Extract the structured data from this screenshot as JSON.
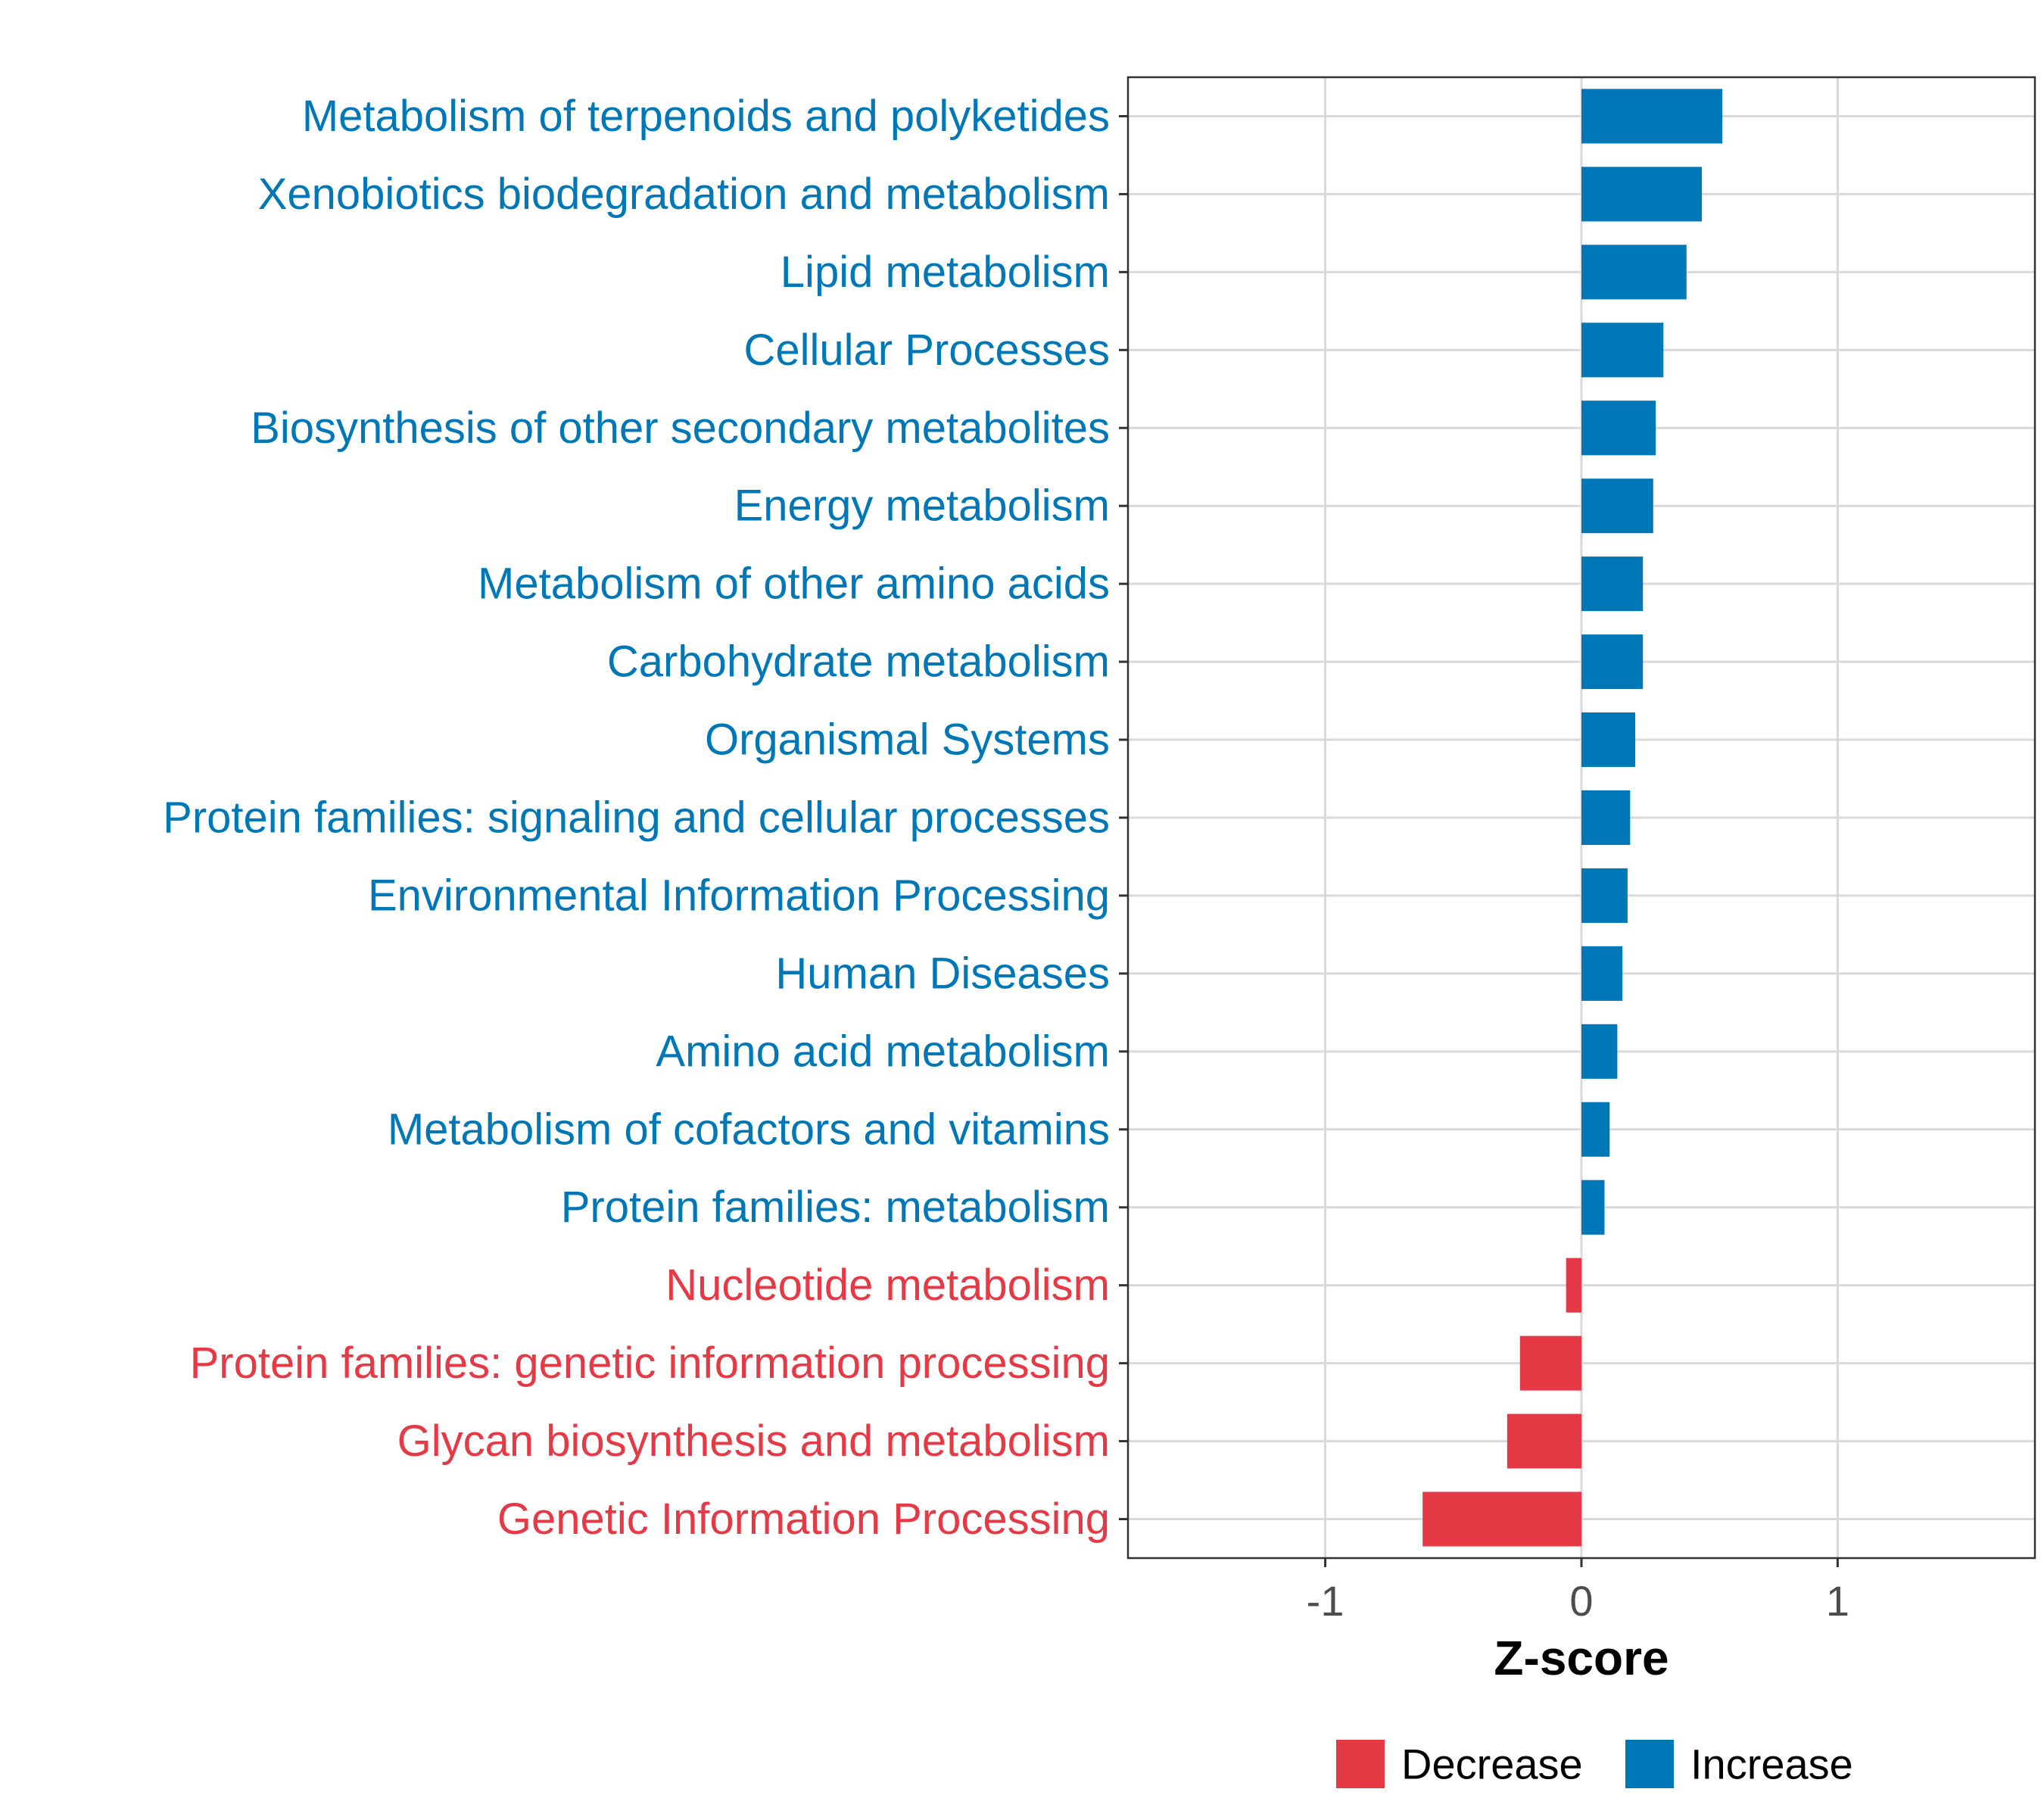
{
  "chart_data": {
    "type": "bar",
    "orientation": "horizontal",
    "title": "",
    "xlabel": "Z-score",
    "ylabel": "",
    "xlim": [
      -1.77,
      1.77
    ],
    "xticks": [
      {
        "value": -1,
        "label": "-1"
      },
      {
        "value": 0,
        "label": "0"
      },
      {
        "value": 1,
        "label": "1"
      }
    ],
    "grid": true,
    "legend_position": "bottom",
    "categories": [
      "Metabolism of terpenoids and polyketides",
      "Xenobiotics biodegradation and metabolism",
      "Lipid metabolism",
      "Cellular Processes",
      "Biosynthesis of other secondary metabolites",
      "Energy metabolism",
      "Metabolism of other amino acids",
      "Carbohydrate metabolism",
      "Organismal Systems",
      "Protein families: signaling and cellular processes",
      "Environmental Information Processing",
      "Human Diseases",
      "Amino acid metabolism",
      "Metabolism of cofactors and vitamins",
      "Protein families: metabolism",
      "Nucleotide metabolism",
      "Protein families: genetic information processing",
      "Glycan biosynthesis and metabolism",
      "Genetic Information Processing"
    ],
    "values": [
      0.55,
      0.47,
      0.41,
      0.32,
      0.29,
      0.28,
      0.24,
      0.24,
      0.21,
      0.19,
      0.18,
      0.16,
      0.14,
      0.11,
      0.09,
      -0.06,
      -0.24,
      -0.29,
      -0.62
    ],
    "groups": [
      "Increase",
      "Increase",
      "Increase",
      "Increase",
      "Increase",
      "Increase",
      "Increase",
      "Increase",
      "Increase",
      "Increase",
      "Increase",
      "Increase",
      "Increase",
      "Increase",
      "Increase",
      "Decrease",
      "Decrease",
      "Decrease",
      "Decrease"
    ],
    "legend": [
      {
        "name": "Decrease",
        "color": "#e63946"
      },
      {
        "name": "Increase",
        "color": "#0077b6"
      }
    ],
    "colors": {
      "Decrease": "#e63946",
      "Increase": "#0077b6"
    }
  }
}
